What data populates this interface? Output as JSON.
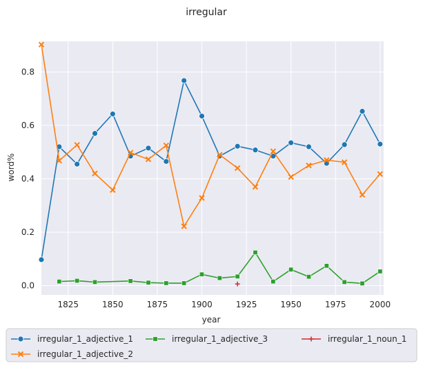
{
  "chart_data": {
    "type": "line",
    "title": "irregular",
    "xlabel": "year",
    "ylabel": "word%",
    "xlim": [
      1810,
      2002
    ],
    "ylim": [
      -0.035,
      0.915
    ],
    "xticks": [
      1825,
      1850,
      1875,
      1900,
      1925,
      1950,
      1975,
      2000
    ],
    "yticks": [
      0.0,
      0.2,
      0.4,
      0.6,
      0.8
    ],
    "ytick_labels": [
      "0.0",
      "0.2",
      "0.4",
      "0.6",
      "0.8"
    ],
    "grid": true,
    "legend": "bottom",
    "series": [
      {
        "name": "irregular_1_adjective_1",
        "color": "#1f77b4",
        "marker": "circle",
        "x": [
          1810,
          1820,
          1830,
          1840,
          1850,
          1860,
          1870,
          1880,
          1890,
          1900,
          1910,
          1920,
          1930,
          1940,
          1950,
          1960,
          1970,
          1980,
          1990,
          2000
        ],
        "y": [
          0.097,
          0.52,
          0.455,
          0.57,
          0.643,
          0.485,
          0.515,
          0.465,
          0.768,
          0.635,
          0.485,
          0.522,
          0.508,
          0.485,
          0.535,
          0.52,
          0.458,
          0.528,
          0.653,
          0.53
        ]
      },
      {
        "name": "irregular_1_adjective_2",
        "color": "#ff7f0e",
        "marker": "x",
        "x": [
          1810,
          1820,
          1830,
          1840,
          1850,
          1860,
          1870,
          1880,
          1890,
          1900,
          1910,
          1920,
          1930,
          1940,
          1950,
          1960,
          1970,
          1980,
          1990,
          2000
        ],
        "y": [
          0.903,
          0.468,
          0.527,
          0.42,
          0.358,
          0.498,
          0.473,
          0.525,
          0.222,
          0.328,
          0.49,
          0.44,
          0.37,
          0.503,
          0.407,
          0.45,
          0.47,
          0.462,
          0.34,
          0.418
        ]
      },
      {
        "name": "irregular_1_adjective_3",
        "color": "#2ca02c",
        "marker": "square",
        "x": [
          1820,
          1830,
          1840,
          1860,
          1870,
          1880,
          1890,
          1900,
          1910,
          1920,
          1930,
          1940,
          1950,
          1960,
          1970,
          1980,
          1990,
          2000
        ],
        "y": [
          0.015,
          0.018,
          0.013,
          0.017,
          0.011,
          0.009,
          0.009,
          0.042,
          0.028,
          0.034,
          0.124,
          0.015,
          0.06,
          0.033,
          0.074,
          0.013,
          0.008,
          0.053
        ]
      },
      {
        "name": "irregular_1_noun_1",
        "color": "#d62728",
        "marker": "plus",
        "x": [
          1920
        ],
        "y": [
          0.006
        ]
      }
    ]
  }
}
